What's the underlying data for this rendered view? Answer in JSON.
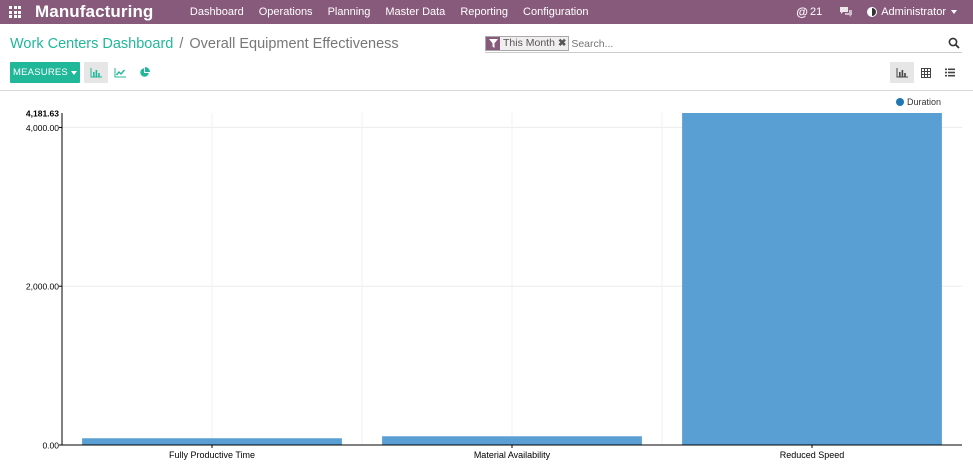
{
  "navbar": {
    "brand": "Manufacturing",
    "menu": [
      "Dashboard",
      "Operations",
      "Planning",
      "Master Data",
      "Reporting",
      "Configuration"
    ],
    "messages_count": "21",
    "user": "Administrator"
  },
  "breadcrumb": {
    "parent": "Work Centers Dashboard",
    "separator": "/",
    "current": "Overall Equipment Effectiveness"
  },
  "search": {
    "facet_value": "This Month",
    "facet_remove": "✖",
    "placeholder": "Search..."
  },
  "toolbar": {
    "measures_label": "MEASURES"
  },
  "colors": {
    "brand": "#875a7b",
    "accent": "#21b799",
    "bar": "#5a9fd4",
    "legend_dot": "#1f77b4"
  },
  "chart_data": {
    "type": "bar",
    "categories": [
      "Fully Productive Time",
      "Material Availability",
      "Reduced Speed"
    ],
    "series": [
      {
        "name": "Duration",
        "values": [
          85,
          110,
          4181.63
        ]
      }
    ],
    "ylim": [
      0,
      4181.63
    ],
    "yticks": [
      "0.00",
      "2,000.00",
      "4,000.00"
    ],
    "ymax_label": "4,181.63",
    "grid": true,
    "legend": "top-right"
  }
}
